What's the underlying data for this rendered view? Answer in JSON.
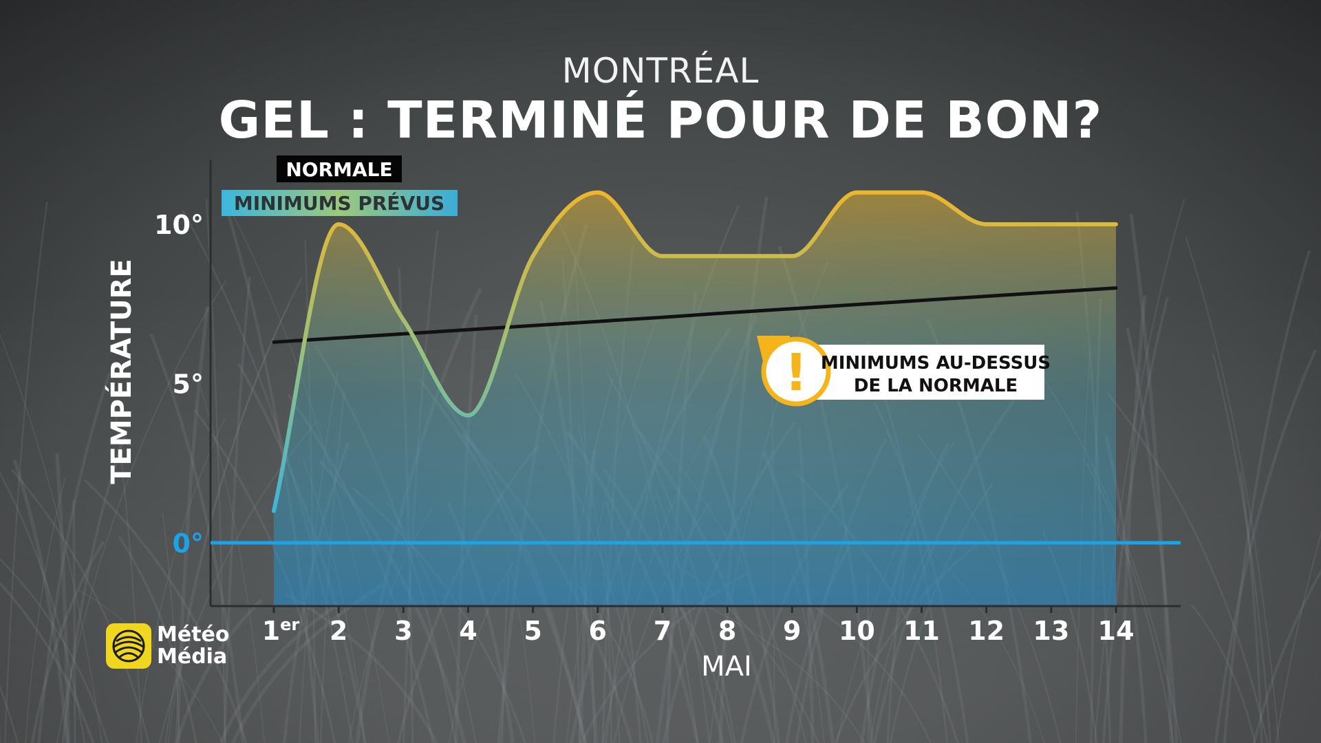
{
  "header": {
    "city": "MONTRÉAL",
    "title": "GEL : TERMINÉ POUR DE BON?"
  },
  "legend": {
    "normal_label": "NORMALE",
    "forecast_label": "MINIMUMS PRÉVUS"
  },
  "callout": {
    "icon": "alert-icon",
    "symbol": "!",
    "line1": "MINIMUMS AU-DESSUS",
    "line2": "DE LA NORMALE"
  },
  "logo": {
    "line1": "Météo",
    "line2": "Média"
  },
  "colors": {
    "normal_line": "#111111",
    "forecast_low": "#3fb5d8",
    "forecast_high": "#f0b62a",
    "zero_line": "#1aa3e8",
    "callout_accent": "#f4b41a"
  },
  "chart_data": {
    "type": "line",
    "title": "GEL : TERMINÉ POUR DE BON?",
    "subtitle": "MONTRÉAL",
    "xlabel": "MAI",
    "ylabel": "TEMPÉRATURE",
    "x": [
      "1",
      "2",
      "3",
      "4",
      "5",
      "6",
      "7",
      "8",
      "9",
      "10",
      "11",
      "12",
      "13",
      "14"
    ],
    "x_tick_labels": [
      {
        "main": "1",
        "sup": "er"
      },
      {
        "main": "2",
        "sup": ""
      },
      {
        "main": "3",
        "sup": ""
      },
      {
        "main": "4",
        "sup": ""
      },
      {
        "main": "5",
        "sup": ""
      },
      {
        "main": "6",
        "sup": ""
      },
      {
        "main": "7",
        "sup": ""
      },
      {
        "main": "8",
        "sup": ""
      },
      {
        "main": "9",
        "sup": ""
      },
      {
        "main": "10",
        "sup": ""
      },
      {
        "main": "11",
        "sup": ""
      },
      {
        "main": "12",
        "sup": ""
      },
      {
        "main": "13",
        "sup": ""
      },
      {
        "main": "14",
        "sup": ""
      }
    ],
    "y_ticks": [
      {
        "value": 0,
        "label": "0°"
      },
      {
        "value": 5,
        "label": "5°"
      },
      {
        "value": 10,
        "label": "10°"
      }
    ],
    "ylim": [
      -2,
      12
    ],
    "grid": false,
    "legend_position": "top-left",
    "series": [
      {
        "name": "MINIMUMS PRÉVUS",
        "style": "smooth-gradient-area",
        "values": [
          1,
          10,
          7,
          4,
          9,
          11,
          9,
          9,
          9,
          11,
          11,
          10,
          10,
          10
        ]
      },
      {
        "name": "NORMALE",
        "style": "straight-line",
        "values": [
          6.3,
          6.43,
          6.56,
          6.69,
          6.82,
          6.95,
          7.08,
          7.22,
          7.35,
          7.48,
          7.61,
          7.74,
          7.87,
          8.0
        ]
      }
    ],
    "reference_line": {
      "value": 0
    }
  }
}
